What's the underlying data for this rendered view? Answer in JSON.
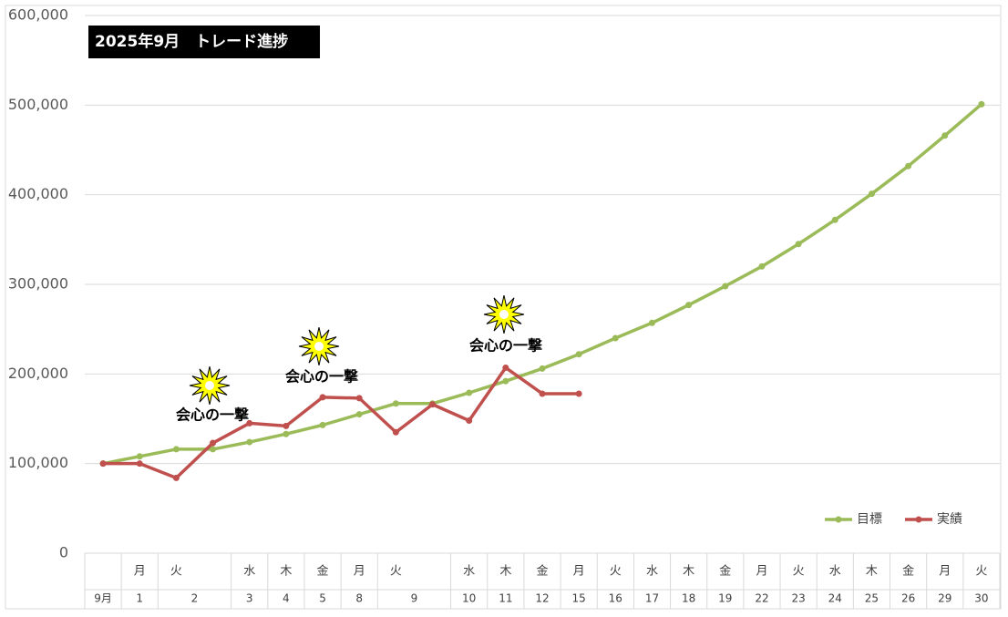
{
  "chart_data": {
    "type": "line",
    "title": "2025年9月　トレード進捗",
    "categories": {
      "weekday": [
        null,
        "月",
        "火",
        null,
        "水",
        "木",
        "金",
        "月",
        "火",
        null,
        "水",
        "木",
        "金",
        "月",
        "火",
        "水",
        "木",
        "金",
        "月",
        "火",
        "水",
        "木",
        "金",
        "月",
        "火"
      ],
      "date": [
        "9月",
        "1",
        "2",
        null,
        "3",
        "4",
        "5",
        "8",
        "9",
        null,
        "10",
        "11",
        "12",
        "15",
        "16",
        "17",
        "18",
        "19",
        "22",
        "23",
        "24",
        "25",
        "26",
        "29",
        "30"
      ]
    },
    "series": [
      {
        "name": "目標",
        "color": "#9bbb59",
        "values": [
          100000,
          108000,
          116000,
          116000,
          124000,
          133000,
          143000,
          155000,
          167000,
          167000,
          179000,
          192000,
          206000,
          222000,
          240000,
          257000,
          277000,
          298000,
          320000,
          345000,
          372000,
          401000,
          432000,
          466000,
          501000
        ]
      },
      {
        "name": "実績",
        "color": "#c0504d",
        "values": [
          100000,
          100000,
          84000,
          123000,
          145000,
          142000,
          174000,
          173000,
          135000,
          166000,
          148000,
          207000,
          178000,
          178000,
          null,
          null,
          null,
          null,
          null,
          null,
          null,
          null,
          null,
          null,
          null
        ]
      }
    ],
    "annotations": [
      "会心の一撃",
      "会心の一撃",
      "会心の一撃"
    ],
    "ylim": [
      0,
      600000
    ],
    "yticks": [
      {
        "value": 0,
        "label": "0"
      },
      {
        "value": 100000,
        "label": "100,000"
      },
      {
        "value": 200000,
        "label": "200,000"
      },
      {
        "value": 300000,
        "label": "300,000"
      },
      {
        "value": 400000,
        "label": "400,000"
      },
      {
        "value": 500000,
        "label": "500,000"
      },
      {
        "value": 600000,
        "label": "600,000"
      }
    ],
    "grid": true,
    "legend": "lower right"
  }
}
